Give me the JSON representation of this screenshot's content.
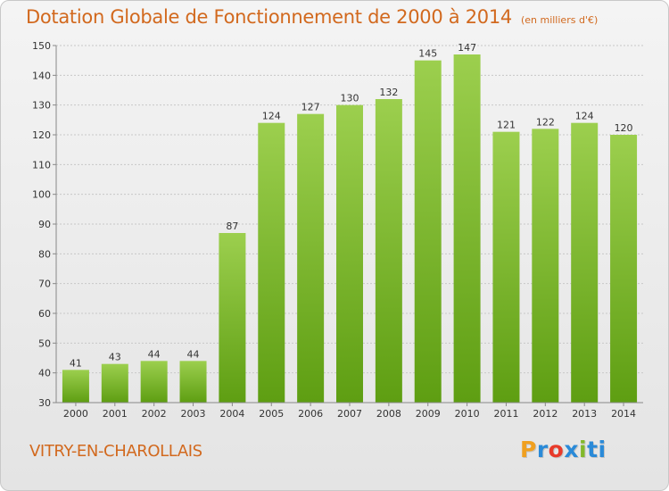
{
  "header": {
    "title": "Dotation Globale de Fonctionnement de 2000 à 2014",
    "unit": "(en milliers d'€)"
  },
  "footer": {
    "town": "VITRY-EN-CHAROLLAIS",
    "logo_letters": [
      "P",
      "r",
      "o",
      "x",
      "i",
      "ti"
    ]
  },
  "colors": {
    "title": "#d2691e",
    "bar_light": "#9ccf4e",
    "bar_dark": "#5e9e12",
    "grid": "#c8c8c8",
    "axis": "#888888"
  },
  "chart_data": {
    "type": "bar",
    "title": "Dotation Globale de Fonctionnement de 2000 à 2014",
    "subtitle": "(en milliers d'€)",
    "categories": [
      "2000",
      "2001",
      "2002",
      "2003",
      "2004",
      "2005",
      "2006",
      "2007",
      "2008",
      "2009",
      "2010",
      "2011",
      "2012",
      "2013",
      "2014"
    ],
    "values": [
      41,
      43,
      44,
      44,
      87,
      124,
      127,
      130,
      132,
      145,
      147,
      121,
      122,
      124,
      120
    ],
    "ylim": [
      30,
      150
    ],
    "yticks": [
      30,
      40,
      50,
      60,
      70,
      80,
      90,
      100,
      110,
      120,
      130,
      140,
      150
    ],
    "grid": true,
    "data_labels": true,
    "legend": "none"
  }
}
